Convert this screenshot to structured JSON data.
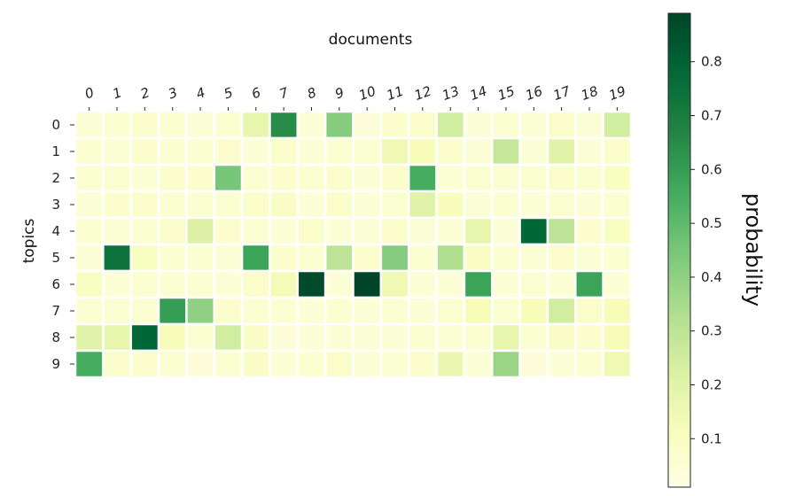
{
  "chart_data": {
    "type": "heatmap",
    "title": "",
    "xlabel": "documents",
    "ylabel": "topics",
    "x_categories": [
      "0",
      "1",
      "2",
      "3",
      "4",
      "5",
      "6",
      "7",
      "8",
      "9",
      "10",
      "11",
      "12",
      "13",
      "14",
      "15",
      "16",
      "17",
      "18",
      "19"
    ],
    "y_categories": [
      "0",
      "1",
      "2",
      "3",
      "4",
      "5",
      "6",
      "7",
      "8",
      "9"
    ],
    "values": [
      [
        0.05,
        0.06,
        0.07,
        0.06,
        0.05,
        0.06,
        0.18,
        0.65,
        0.05,
        0.42,
        0.04,
        0.07,
        0.08,
        0.25,
        0.05,
        0.06,
        0.05,
        0.08,
        0.05,
        0.25
      ],
      [
        0.06,
        0.05,
        0.07,
        0.06,
        0.06,
        0.07,
        0.05,
        0.08,
        0.05,
        0.06,
        0.06,
        0.15,
        0.12,
        0.07,
        0.05,
        0.28,
        0.05,
        0.2,
        0.05,
        0.08
      ],
      [
        0.06,
        0.06,
        0.05,
        0.07,
        0.07,
        0.45,
        0.06,
        0.07,
        0.06,
        0.07,
        0.05,
        0.07,
        0.55,
        0.05,
        0.06,
        0.06,
        0.06,
        0.08,
        0.06,
        0.1
      ],
      [
        0.05,
        0.07,
        0.07,
        0.06,
        0.06,
        0.06,
        0.08,
        0.09,
        0.05,
        0.08,
        0.05,
        0.06,
        0.2,
        0.11,
        0.05,
        0.06,
        0.05,
        0.06,
        0.05,
        0.06
      ],
      [
        0.06,
        0.05,
        0.06,
        0.08,
        0.22,
        0.07,
        0.06,
        0.05,
        0.08,
        0.05,
        0.05,
        0.08,
        0.05,
        0.05,
        0.18,
        0.05,
        0.78,
        0.3,
        0.07,
        0.1
      ],
      [
        0.05,
        0.74,
        0.1,
        0.06,
        0.06,
        0.05,
        0.58,
        0.07,
        0.06,
        0.3,
        0.07,
        0.42,
        0.06,
        0.33,
        0.09,
        0.06,
        0.05,
        0.07,
        0.05,
        0.06
      ],
      [
        0.1,
        0.05,
        0.06,
        0.06,
        0.06,
        0.05,
        0.08,
        0.13,
        0.87,
        0.05,
        0.89,
        0.15,
        0.05,
        0.05,
        0.58,
        0.05,
        0.06,
        0.05,
        0.58,
        0.05
      ],
      [
        0.06,
        0.06,
        0.06,
        0.6,
        0.4,
        0.07,
        0.06,
        0.06,
        0.05,
        0.06,
        0.05,
        0.06,
        0.05,
        0.06,
        0.12,
        0.06,
        0.12,
        0.25,
        0.08,
        0.12
      ],
      [
        0.2,
        0.18,
        0.78,
        0.12,
        0.06,
        0.25,
        0.09,
        0.04,
        0.05,
        0.05,
        0.05,
        0.05,
        0.06,
        0.05,
        0.06,
        0.18,
        0.06,
        0.09,
        0.07,
        0.12
      ],
      [
        0.55,
        0.08,
        0.07,
        0.06,
        0.04,
        0.06,
        0.09,
        0.05,
        0.06,
        0.08,
        0.05,
        0.06,
        0.07,
        0.16,
        0.05,
        0.38,
        0.04,
        0.05,
        0.06,
        0.15
      ]
    ],
    "colorbar": {
      "label": "probability",
      "ticks": [
        "0.1",
        "0.2",
        "0.3",
        "0.4",
        "0.5",
        "0.6",
        "0.7",
        "0.8"
      ],
      "tick_values": [
        0.1,
        0.2,
        0.3,
        0.4,
        0.5,
        0.6,
        0.7,
        0.8
      ],
      "vmin": 0.01,
      "vmax": 0.89,
      "colormap": "YlGn"
    },
    "grid": false,
    "cell_border_color": "#ffffff"
  }
}
